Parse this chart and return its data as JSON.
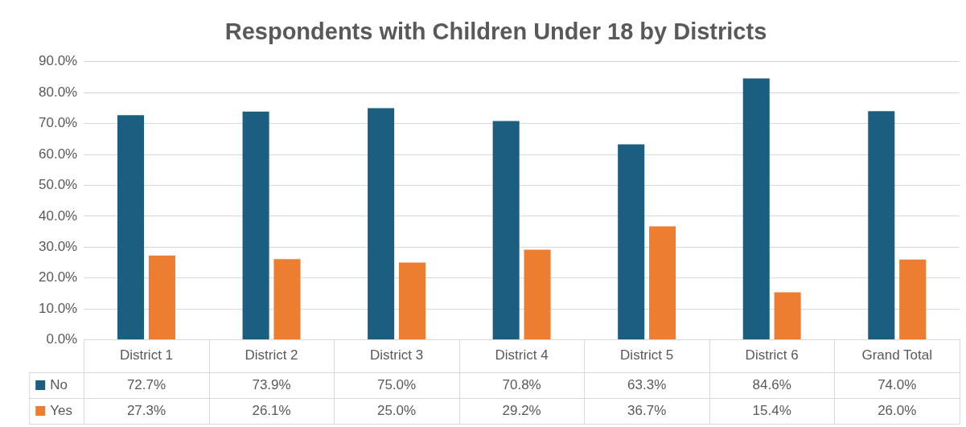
{
  "chart_data": {
    "type": "bar",
    "title": "Respondents with Children Under 18 by Districts",
    "categories": [
      "District 1",
      "District 2",
      "District 3",
      "District 4",
      "District 5",
      "District 6",
      "Grand Total"
    ],
    "series": [
      {
        "name": "No",
        "color": "#1b5e80",
        "values": [
          72.7,
          73.9,
          75.0,
          70.8,
          63.3,
          84.6,
          74.0
        ],
        "value_labels": [
          "72.7%",
          "73.9%",
          "75.0%",
          "70.8%",
          "63.3%",
          "84.6%",
          "74.0%"
        ]
      },
      {
        "name": "Yes",
        "color": "#ed7d31",
        "values": [
          27.3,
          26.1,
          25.0,
          29.2,
          36.7,
          15.4,
          26.0
        ],
        "value_labels": [
          "27.3%",
          "26.1%",
          "25.0%",
          "29.2%",
          "36.7%",
          "15.4%",
          "26.0%"
        ]
      }
    ],
    "ylim": [
      0,
      90
    ],
    "yticks": [
      {
        "value": 0,
        "label": "0.0%"
      },
      {
        "value": 10,
        "label": "10.0%"
      },
      {
        "value": 20,
        "label": "20.0%"
      },
      {
        "value": 30,
        "label": "30.0%"
      },
      {
        "value": 40,
        "label": "40.0%"
      },
      {
        "value": 50,
        "label": "50.0%"
      },
      {
        "value": 60,
        "label": "60.0%"
      },
      {
        "value": 70,
        "label": "70.0%"
      },
      {
        "value": 80,
        "label": "80.0%"
      },
      {
        "value": 90,
        "label": "90.0%"
      }
    ],
    "grid": "y",
    "legend": "bottom"
  }
}
